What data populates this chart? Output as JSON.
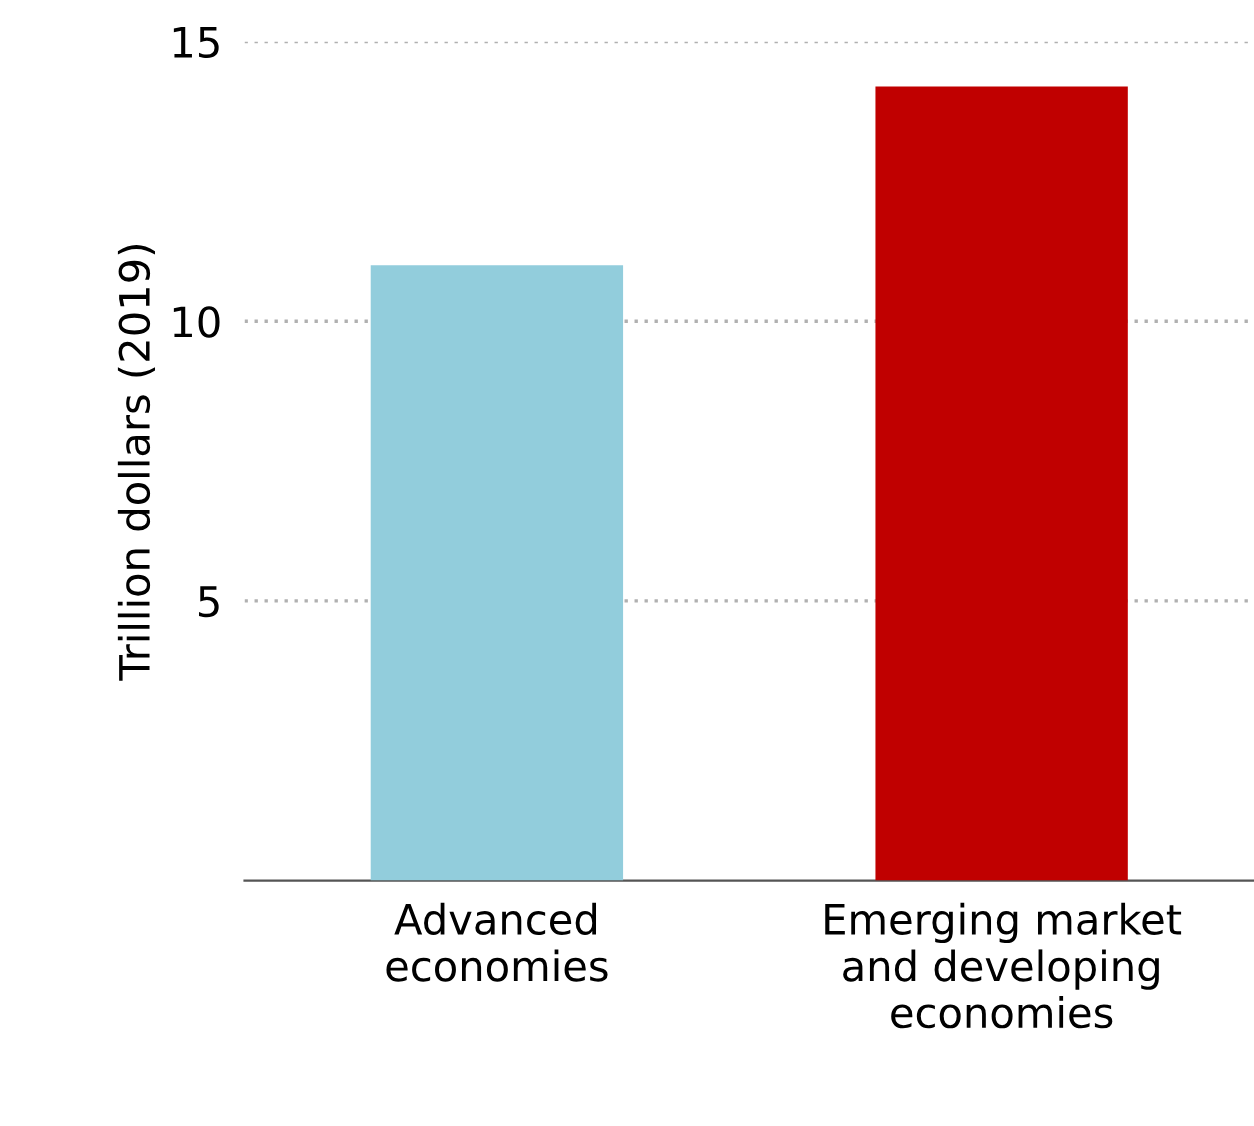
{
  "chart_data": {
    "type": "bar",
    "ylabel": "Trillion dollars (2019)",
    "categories": [
      "Advanced\neconomies",
      "Emerging market\nand developing\neconomies"
    ],
    "values": [
      11.0,
      14.2
    ],
    "colors": [
      "#92cddc",
      "#c00000"
    ],
    "ylim": [
      0,
      15
    ],
    "yticks": [
      5,
      10,
      15
    ],
    "grid": "y",
    "legend": false
  }
}
